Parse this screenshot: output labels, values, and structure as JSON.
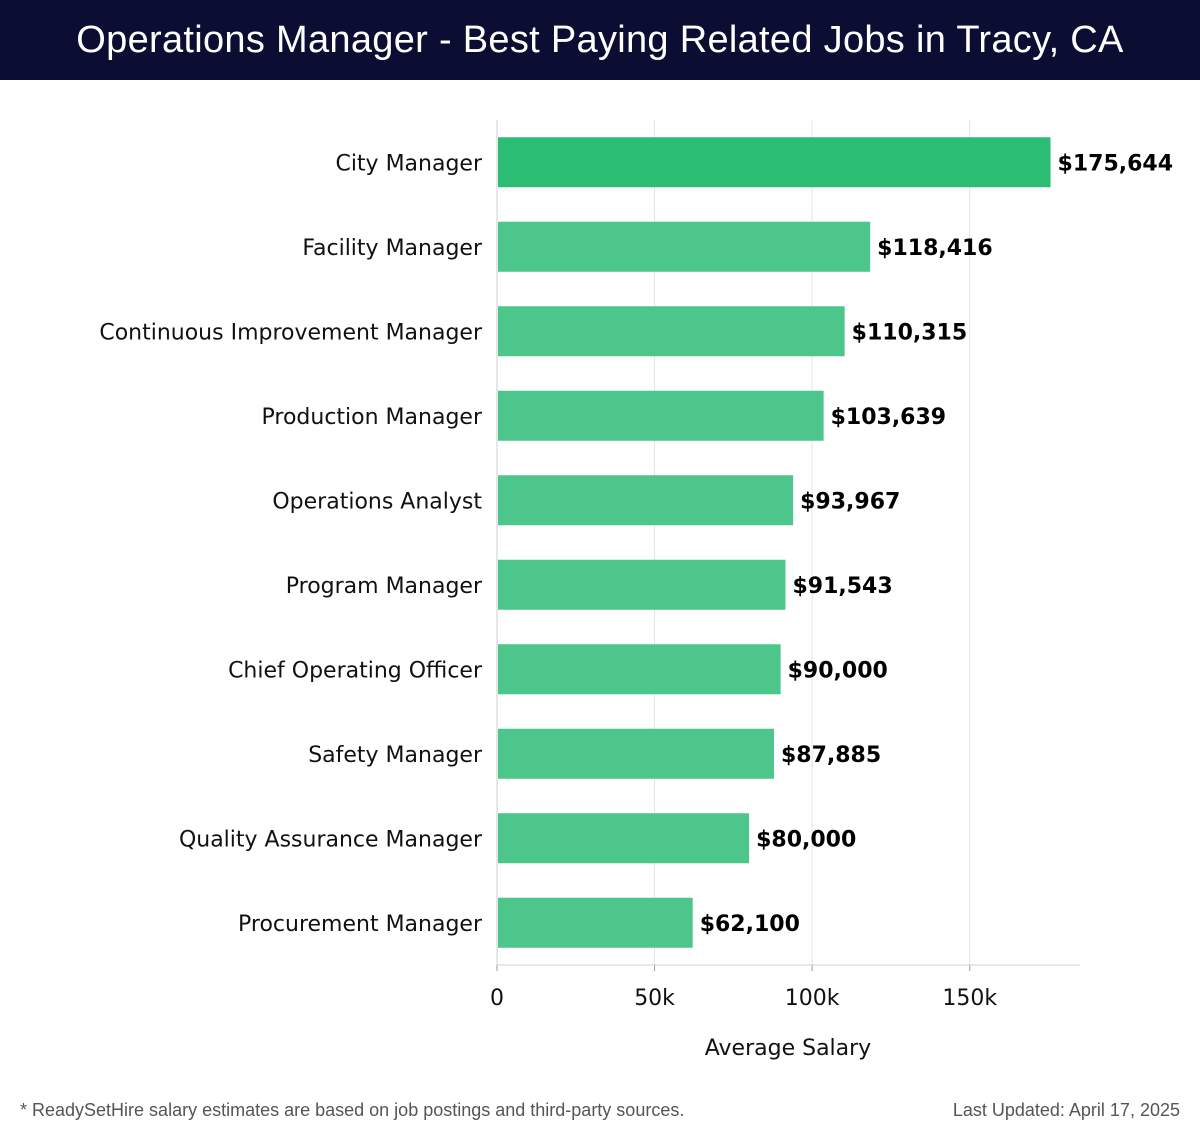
{
  "header": {
    "title": "Operations Manager - Best Paying Related Jobs in Tracy, CA"
  },
  "footer": {
    "note": "* ReadySetHire salary estimates are based on job postings and third-party sources.",
    "last_updated": "Last Updated: April 17, 2025"
  },
  "colors": {
    "header_bg": "#0b0d33",
    "bar_top": "#2bbd74",
    "bar": "#4cc68a",
    "grid": "#e3e3e3"
  },
  "chart_data": {
    "type": "bar",
    "orientation": "horizontal",
    "categories": [
      "City Manager",
      "Facility Manager",
      "Continuous Improvement Manager",
      "Production Manager",
      "Operations Analyst",
      "Program Manager",
      "Chief Operating Officer",
      "Safety Manager",
      "Quality Assurance Manager",
      "Procurement Manager"
    ],
    "values": [
      175644,
      118416,
      110315,
      103639,
      93967,
      91543,
      90000,
      87885,
      80000,
      62100
    ],
    "value_labels": [
      "$175,644",
      "$118,416",
      "$110,315",
      "$103,639",
      "$93,967",
      "$91,543",
      "$90,000",
      "$87,885",
      "$80,000",
      "$62,100"
    ],
    "xlabel": "Average Salary",
    "xlim": [
      0,
      185000
    ],
    "xticks": [
      0,
      50000,
      100000,
      150000
    ],
    "xtick_labels": [
      "0",
      "50k",
      "100k",
      "150k"
    ],
    "grid": true
  }
}
